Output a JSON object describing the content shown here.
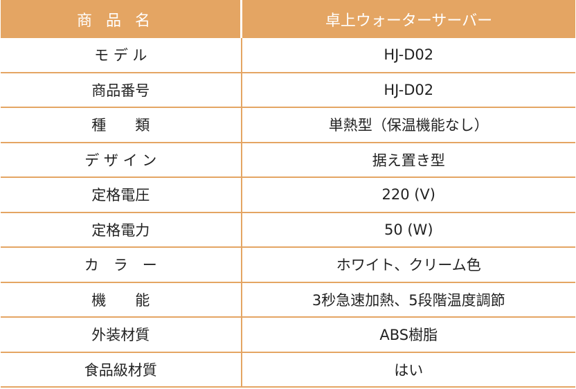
{
  "header": {
    "label": "商品名",
    "value": "卓上ウォーターサーバー"
  },
  "rows": [
    {
      "label": "モ デ ル",
      "value": "HJ-D02"
    },
    {
      "label": "商品番号",
      "value": "HJ-D02"
    },
    {
      "label": "種　　類",
      "value": "単熱型（保温機能なし）"
    },
    {
      "label": "デ ザ イ ン",
      "value": "据え置き型"
    },
    {
      "label": "定格電圧",
      "value": "220 (V)"
    },
    {
      "label": "定格電力",
      "value": "50 (W)"
    },
    {
      "label": "カ　ラ　ー",
      "value": "ホワイト、クリーム色"
    },
    {
      "label": "機　　能",
      "value": "3秒急速加熱、5段階温度調節"
    },
    {
      "label": "外装材質",
      "value": "ABS樹脂"
    },
    {
      "label": "食品級材質",
      "value": "はい"
    }
  ],
  "colors": {
    "accent": "#e4a563"
  }
}
